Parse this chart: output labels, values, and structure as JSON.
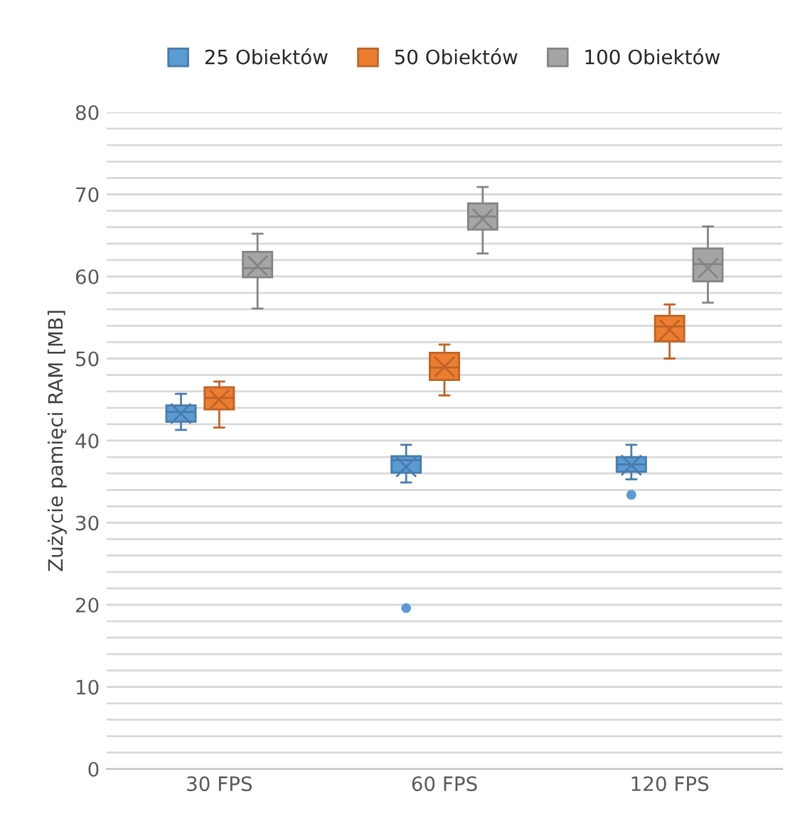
{
  "chart_data": {
    "type": "box",
    "ylabel": "Zużycie pamięci RAM [MB]",
    "categories": [
      "30 FPS",
      "60 FPS",
      "120 FPS"
    ],
    "series": [
      {
        "name": "25 Obiektów",
        "color": "#5b9bd5",
        "boxes": [
          {
            "low": 41.3,
            "q1": 42.3,
            "median": 43.5,
            "q3": 44.3,
            "high": 45.7,
            "mean": 43.3
          },
          {
            "low": 34.9,
            "q1": 36.1,
            "median": 37.6,
            "q3": 38.1,
            "high": 39.5,
            "mean": 36.8,
            "outliers": [
              19.6
            ]
          },
          {
            "low": 35.3,
            "q1": 36.2,
            "median": 37.1,
            "q3": 38.0,
            "high": 39.5,
            "mean": 37.0,
            "outliers": [
              33.4
            ]
          }
        ]
      },
      {
        "name": "50 Obiektów",
        "color": "#ed7d31",
        "boxes": [
          {
            "low": 41.6,
            "q1": 43.8,
            "median": 45.2,
            "q3": 46.5,
            "high": 47.2,
            "mean": 45.0
          },
          {
            "low": 45.5,
            "q1": 47.4,
            "median": 48.9,
            "q3": 50.7,
            "high": 51.7,
            "mean": 49.0
          },
          {
            "low": 50.0,
            "q1": 52.1,
            "median": 53.9,
            "q3": 55.2,
            "high": 56.6,
            "mean": 53.5
          }
        ]
      },
      {
        "name": "100 Obiektów",
        "color": "#a5a5a5",
        "boxes": [
          {
            "low": 56.1,
            "q1": 59.9,
            "median": 61.0,
            "q3": 63.0,
            "high": 65.2,
            "mean": 61.3
          },
          {
            "low": 62.8,
            "q1": 65.7,
            "median": 67.3,
            "q3": 68.9,
            "high": 70.9,
            "mean": 67.0
          },
          {
            "low": 56.8,
            "q1": 59.4,
            "median": 61.5,
            "q3": 63.4,
            "high": 66.1,
            "mean": 61.0
          }
        ]
      }
    ],
    "ylim": [
      0,
      80
    ],
    "yticks": [
      0,
      {
        "value": 2,
        "label": null
      },
      {
        "value": 4,
        "label": null
      },
      {
        "value": 6,
        "label": null
      },
      {
        "value": 8,
        "label": null
      },
      10,
      {
        "value": 12,
        "label": null
      },
      {
        "value": 14,
        "label": null
      },
      {
        "value": 16,
        "label": null
      },
      {
        "value": 18,
        "label": null
      },
      20,
      {
        "value": 22,
        "label": null
      },
      {
        "value": 24,
        "label": null
      },
      {
        "value": 26,
        "label": null
      },
      {
        "value": 28,
        "label": null
      },
      30,
      {
        "value": 32,
        "label": null
      },
      {
        "value": 34,
        "label": null
      },
      {
        "value": 36,
        "label": null
      },
      {
        "value": 38,
        "label": null
      },
      40,
      {
        "value": 42,
        "label": null
      },
      {
        "value": 44,
        "label": null
      },
      {
        "value": 46,
        "label": null
      },
      {
        "value": 48,
        "label": null
      },
      50,
      {
        "value": 52,
        "label": null
      },
      {
        "value": 54,
        "label": null
      },
      {
        "value": 56,
        "label": null
      },
      {
        "value": 58,
        "label": null
      },
      60,
      {
        "value": 62,
        "label": null
      },
      {
        "value": 64,
        "label": null
      },
      {
        "value": 66,
        "label": null
      },
      {
        "value": 68,
        "label": null
      },
      70,
      {
        "value": 72,
        "label": null
      },
      {
        "value": 74,
        "label": null
      },
      {
        "value": 76,
        "label": null
      },
      {
        "value": 78,
        "label": null
      },
      80
    ],
    "grid": "y",
    "legend": "top"
  }
}
